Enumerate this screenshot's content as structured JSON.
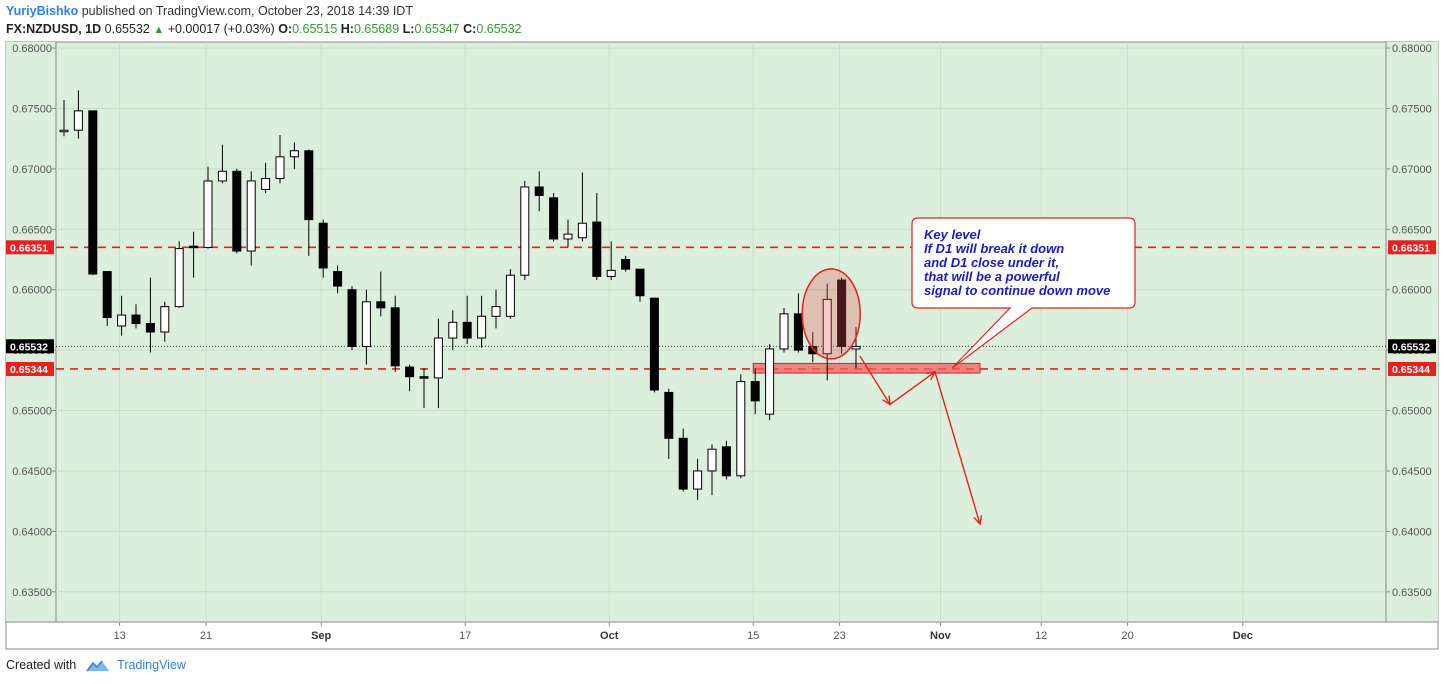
{
  "header": {
    "author": "YuriyBishko",
    "published": "published on TradingView.com, October 23, 2018 14:39 IDT",
    "symbol": "FX:NZDUSD, 1D",
    "last": "0.65532",
    "change": "+0.00017 (+0.03%)",
    "o_label": "O:",
    "o_value": "0.65515",
    "h_label": "H:",
    "h_value": "0.65689",
    "l_label": "L:",
    "l_value": "0.65347",
    "c_label": "C:",
    "c_value": "0.65532"
  },
  "footer": {
    "created_with": "Created with",
    "brand": "TradingView"
  },
  "colors": {
    "background": "#dcefdc",
    "grid": "#c8dcc8",
    "level": "#e82020",
    "bull": "#ffffff",
    "bear": "#000000",
    "note_text": "#1a1acc"
  },
  "chart_data": {
    "type": "candlestick",
    "ylim": [
      0.6325,
      0.6805
    ],
    "y_ticks": [
      "0.68000",
      "0.67500",
      "0.67000",
      "0.66500",
      "0.66000",
      "0.65500",
      "0.65000",
      "0.64500",
      "0.64000",
      "0.63500"
    ],
    "x_ticks": [
      {
        "label": "13",
        "i": 4
      },
      {
        "label": "21",
        "i": 10
      },
      {
        "label": "Sep",
        "i": 18
      },
      {
        "label": "17",
        "i": 28
      },
      {
        "label": "Oct",
        "i": 38
      },
      {
        "label": "15",
        "i": 48
      },
      {
        "label": "23",
        "i": 54
      },
      {
        "label": "Nov",
        "i": 61
      },
      {
        "label": "12",
        "i": 68
      },
      {
        "label": "20",
        "i": 74
      },
      {
        "label": "Dec",
        "i": 82
      }
    ],
    "candles": [
      {
        "o": 0.6732,
        "h": 0.6757,
        "l": 0.6727,
        "c": 0.6732
      },
      {
        "o": 0.6732,
        "h": 0.6765,
        "l": 0.6725,
        "c": 0.6748
      },
      {
        "o": 0.6748,
        "h": 0.6748,
        "l": 0.6612,
        "c": 0.6613
      },
      {
        "o": 0.6615,
        "h": 0.6615,
        "l": 0.657,
        "c": 0.6577
      },
      {
        "o": 0.657,
        "h": 0.6595,
        "l": 0.6562,
        "c": 0.6579
      },
      {
        "o": 0.6579,
        "h": 0.6588,
        "l": 0.6568,
        "c": 0.6572
      },
      {
        "o": 0.6572,
        "h": 0.661,
        "l": 0.6548,
        "c": 0.6565
      },
      {
        "o": 0.6565,
        "h": 0.659,
        "l": 0.6557,
        "c": 0.6586
      },
      {
        "o": 0.6586,
        "h": 0.664,
        "l": 0.6585,
        "c": 0.6634
      },
      {
        "o": 0.6636,
        "h": 0.6648,
        "l": 0.661,
        "c": 0.6635
      },
      {
        "o": 0.6635,
        "h": 0.6702,
        "l": 0.6634,
        "c": 0.669
      },
      {
        "o": 0.669,
        "h": 0.672,
        "l": 0.6688,
        "c": 0.6698
      },
      {
        "o": 0.6698,
        "h": 0.67,
        "l": 0.663,
        "c": 0.6632
      },
      {
        "o": 0.6632,
        "h": 0.6698,
        "l": 0.662,
        "c": 0.669
      },
      {
        "o": 0.6683,
        "h": 0.6705,
        "l": 0.668,
        "c": 0.6692
      },
      {
        "o": 0.6692,
        "h": 0.6728,
        "l": 0.6688,
        "c": 0.671
      },
      {
        "o": 0.671,
        "h": 0.6722,
        "l": 0.67,
        "c": 0.6715
      },
      {
        "o": 0.6715,
        "h": 0.6716,
        "l": 0.6628,
        "c": 0.6658
      },
      {
        "o": 0.6655,
        "h": 0.6658,
        "l": 0.661,
        "c": 0.6618
      },
      {
        "o": 0.6615,
        "h": 0.662,
        "l": 0.6597,
        "c": 0.6603
      },
      {
        "o": 0.66,
        "h": 0.6603,
        "l": 0.655,
        "c": 0.6553
      },
      {
        "o": 0.6553,
        "h": 0.66,
        "l": 0.6538,
        "c": 0.659
      },
      {
        "o": 0.659,
        "h": 0.6615,
        "l": 0.6578,
        "c": 0.6585
      },
      {
        "o": 0.6585,
        "h": 0.6595,
        "l": 0.6532,
        "c": 0.6537
      },
      {
        "o": 0.6536,
        "h": 0.6538,
        "l": 0.6516,
        "c": 0.6528
      },
      {
        "o": 0.6528,
        "h": 0.6535,
        "l": 0.6502,
        "c": 0.6527
      },
      {
        "o": 0.6527,
        "h": 0.6576,
        "l": 0.6502,
        "c": 0.656
      },
      {
        "o": 0.656,
        "h": 0.6583,
        "l": 0.655,
        "c": 0.6573
      },
      {
        "o": 0.6573,
        "h": 0.6595,
        "l": 0.6555,
        "c": 0.656
      },
      {
        "o": 0.656,
        "h": 0.6595,
        "l": 0.6552,
        "c": 0.6578
      },
      {
        "o": 0.6578,
        "h": 0.66,
        "l": 0.6568,
        "c": 0.6586
      },
      {
        "o": 0.6578,
        "h": 0.6617,
        "l": 0.6576,
        "c": 0.6612
      },
      {
        "o": 0.6612,
        "h": 0.669,
        "l": 0.6608,
        "c": 0.6685
      },
      {
        "o": 0.6685,
        "h": 0.6698,
        "l": 0.6665,
        "c": 0.6678
      },
      {
        "o": 0.6676,
        "h": 0.668,
        "l": 0.664,
        "c": 0.6642
      },
      {
        "o": 0.6642,
        "h": 0.6658,
        "l": 0.6635,
        "c": 0.6646
      },
      {
        "o": 0.6643,
        "h": 0.6697,
        "l": 0.664,
        "c": 0.6655
      },
      {
        "o": 0.6656,
        "h": 0.668,
        "l": 0.6608,
        "c": 0.6611
      },
      {
        "o": 0.6611,
        "h": 0.664,
        "l": 0.6608,
        "c": 0.6616
      },
      {
        "o": 0.6625,
        "h": 0.6628,
        "l": 0.6615,
        "c": 0.6617
      },
      {
        "o": 0.6617,
        "h": 0.6617,
        "l": 0.659,
        "c": 0.6595
      },
      {
        "o": 0.6593,
        "h": 0.6593,
        "l": 0.6515,
        "c": 0.6517
      },
      {
        "o": 0.6515,
        "h": 0.6518,
        "l": 0.646,
        "c": 0.6477
      },
      {
        "o": 0.6477,
        "h": 0.6485,
        "l": 0.6433,
        "c": 0.6435
      },
      {
        "o": 0.6435,
        "h": 0.646,
        "l": 0.6426,
        "c": 0.645
      },
      {
        "o": 0.645,
        "h": 0.6472,
        "l": 0.643,
        "c": 0.6468
      },
      {
        "o": 0.647,
        "h": 0.6475,
        "l": 0.6443,
        "c": 0.6446
      },
      {
        "o": 0.6446,
        "h": 0.653,
        "l": 0.6444,
        "c": 0.6524
      },
      {
        "o": 0.6524,
        "h": 0.6535,
        "l": 0.6497,
        "c": 0.6508
      },
      {
        "o": 0.6497,
        "h": 0.6555,
        "l": 0.6492,
        "c": 0.6551
      },
      {
        "o": 0.6551,
        "h": 0.6585,
        "l": 0.6548,
        "c": 0.658
      },
      {
        "o": 0.658,
        "h": 0.6597,
        "l": 0.6548,
        "c": 0.655
      },
      {
        "o": 0.6553,
        "h": 0.6565,
        "l": 0.654,
        "c": 0.6547
      },
      {
        "o": 0.6547,
        "h": 0.6605,
        "l": 0.6525,
        "c": 0.6592
      },
      {
        "o": 0.6608,
        "h": 0.661,
        "l": 0.6547,
        "c": 0.6553
      },
      {
        "o": 0.6551,
        "h": 0.6569,
        "l": 0.6535,
        "c": 0.6553
      }
    ],
    "levels": [
      {
        "price": 0.66351,
        "label": "0.66351"
      },
      {
        "price": 0.65344,
        "label": "0.65344"
      }
    ],
    "last_price": {
      "price": 0.65532,
      "label": "0.65532"
    },
    "annotation": {
      "lines": [
        "Key level",
        "If D1 will break it down",
        "and D1 close under it,",
        "that will be a powerful",
        "signal to continue down move"
      ]
    }
  }
}
